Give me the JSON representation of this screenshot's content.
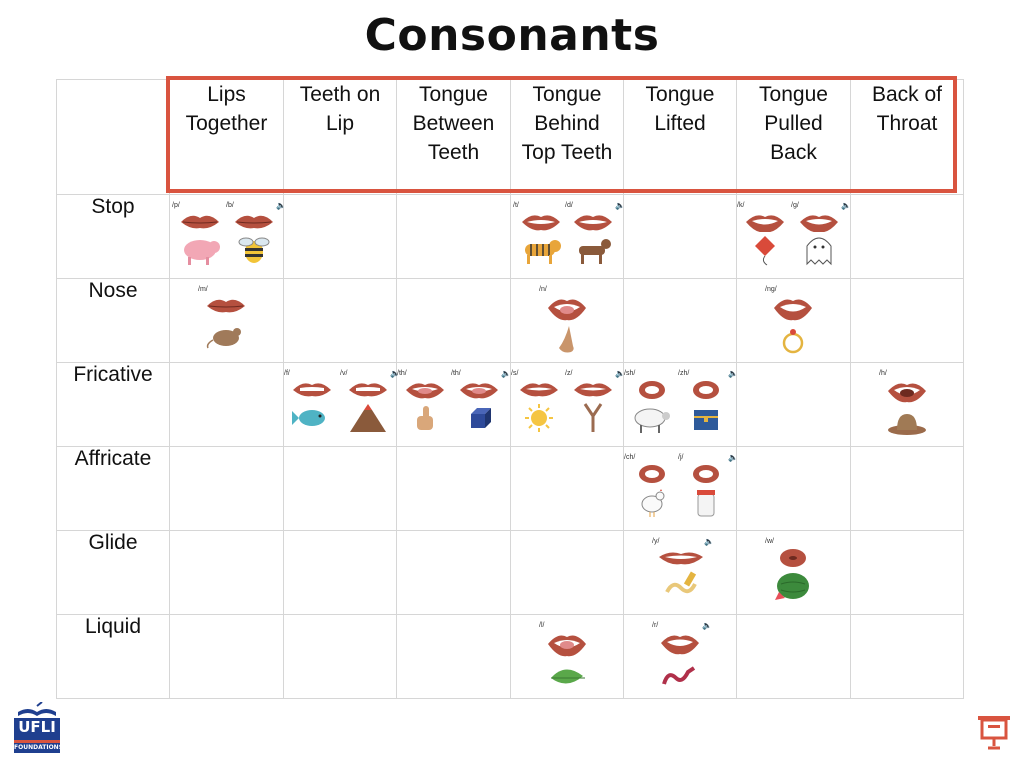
{
  "title": "Consonants",
  "columns": [
    {
      "line1": "Lips",
      "line2": "Together",
      "line3": ""
    },
    {
      "line1": "Teeth on",
      "line2": "Lip",
      "line3": ""
    },
    {
      "line1": "Tongue",
      "line2": "Between",
      "line3": "Teeth"
    },
    {
      "line1": "Tongue",
      "line2": "Behind",
      "line3": "Top Teeth"
    },
    {
      "line1": "Tongue",
      "line2": "Lifted",
      "line3": ""
    },
    {
      "line1": "Tongue",
      "line2": "Pulled",
      "line3": "Back"
    },
    {
      "line1": "Back of",
      "line2": "Throat",
      "line3": ""
    }
  ],
  "rows": [
    "Stop",
    "Nose",
    "Fricative",
    "Affricate",
    "Glide",
    "Liquid"
  ],
  "phonemes": {
    "stop_lips_1": "/p/",
    "stop_lips_2": "/b/",
    "stop_behind_1": "/t/",
    "stop_behind_2": "/d/",
    "stop_back_1": "/k/",
    "stop_back_2": "/g/",
    "nose_lips": "/m/",
    "nose_behind": "/n/",
    "nose_back": "/ng/",
    "fric_teeth_1": "/f/",
    "fric_teeth_2": "/v/",
    "fric_between_1": "/th/",
    "fric_between_2": "/th/",
    "fric_behind_1": "/s/",
    "fric_behind_2": "/z/",
    "fric_lifted_1": "/sh/",
    "fric_lifted_2": "/zh/",
    "fric_throat": "/h/",
    "aff_lifted_1": "/ch/",
    "aff_lifted_2": "/j/",
    "glide_lifted": "/y/",
    "glide_back": "/w/",
    "liq_behind": "/l/",
    "liq_lifted": "/r/"
  },
  "icons": {
    "speaker": "speaker-icon",
    "logo_text": "UFLI",
    "logo_sub": "FOUNDATIONS"
  },
  "colors": {
    "highlight": "#d9543f",
    "lips": "#b5503f",
    "logo_blue": "#1f3f8f",
    "logo_red": "#d9543f"
  }
}
